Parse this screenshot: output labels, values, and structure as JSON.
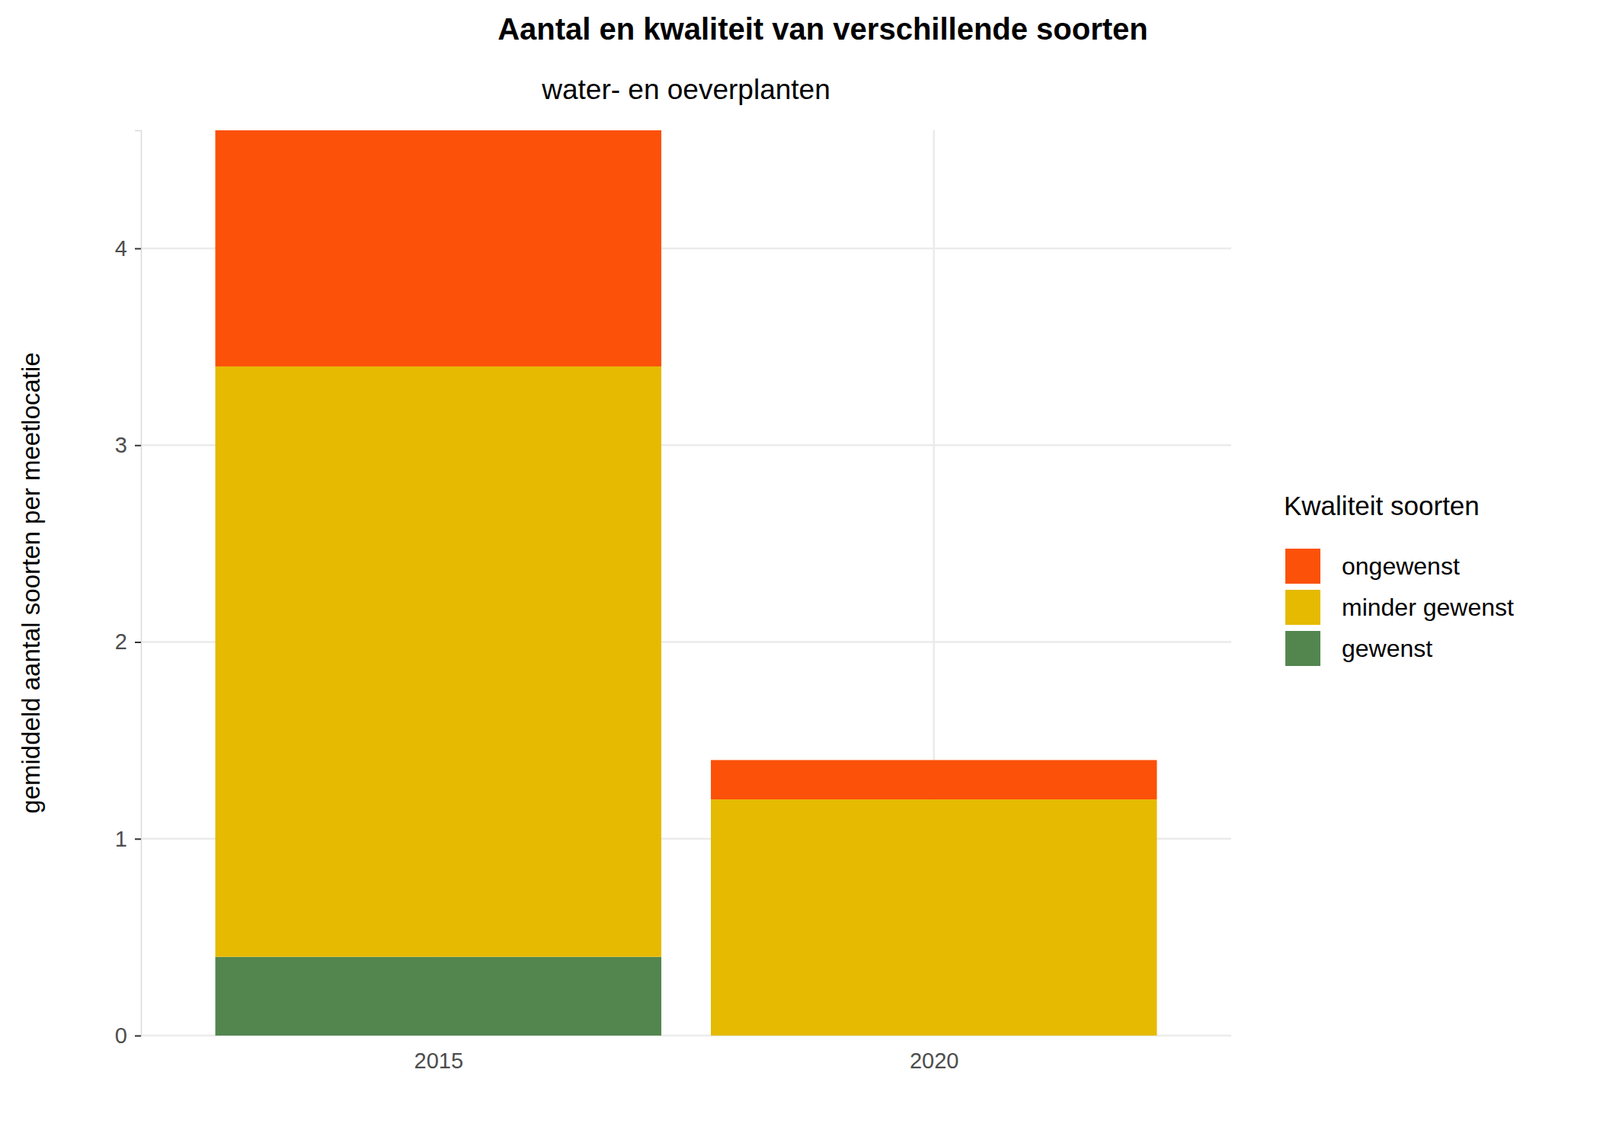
{
  "chart_data": {
    "type": "bar",
    "title": "Aantal en kwaliteit van verschillende soorten",
    "subtitle": "water- en oeverplanten",
    "y_label": "gemiddeld aantal soorten per meetlocatie",
    "legend_title": "Kwaliteit soorten",
    "categories": [
      "2015",
      "2020"
    ],
    "series": [
      {
        "name": "gewenst",
        "color": "#53864e",
        "values": [
          0.4,
          0
        ]
      },
      {
        "name": "minder gewenst",
        "color": "#e5ba00",
        "values": [
          3.0,
          1.2
        ]
      },
      {
        "name": "ongewenst",
        "color": "#fc5108",
        "values": [
          1.2,
          0.2
        ]
      }
    ],
    "stacked": true,
    "ylim": [
      0,
      4.6
    ],
    "yticks": [
      0,
      1,
      2,
      3,
      4
    ],
    "grid": true,
    "legend": "right"
  }
}
